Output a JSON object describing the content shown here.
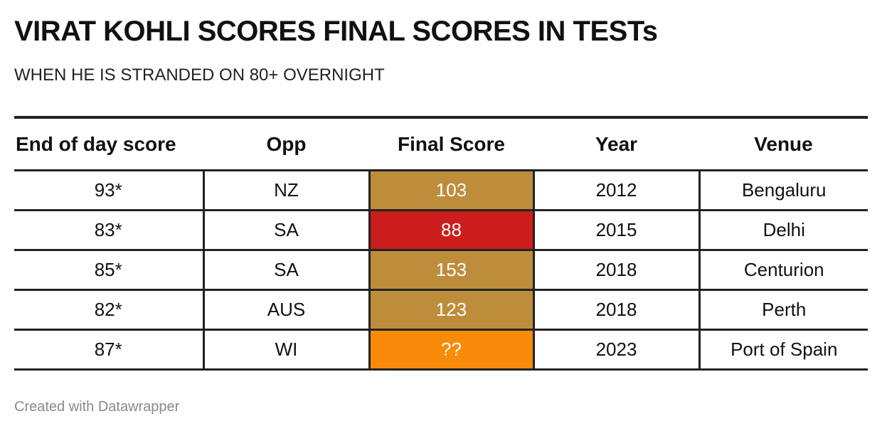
{
  "title": "VIRAT KOHLI SCORES FINAL SCORES IN TESTs",
  "subtitle": "WHEN HE IS STRANDED ON 80+ OVERNIGHT",
  "footer": "Created with Datawrapper",
  "colors": {
    "century": "#be8d3c",
    "below_century": "#cb1d1b",
    "unknown": "#f88c0a",
    "rule": "#222222"
  },
  "chart_data": {
    "type": "table",
    "columns": [
      "End of day score",
      "Opp",
      "Final Score",
      "Year",
      "Venue"
    ],
    "rows": [
      {
        "end_of_day": "93*",
        "opp": "NZ",
        "final": "103",
        "year": "2012",
        "venue": "Bengaluru",
        "fill": "#be8d3c"
      },
      {
        "end_of_day": "83*",
        "opp": "SA",
        "final": "88",
        "year": "2015",
        "venue": "Delhi",
        "fill": "#cb1d1b"
      },
      {
        "end_of_day": "85*",
        "opp": "SA",
        "final": "153",
        "year": "2018",
        "venue": "Centurion",
        "fill": "#be8d3c"
      },
      {
        "end_of_day": "82*",
        "opp": "AUS",
        "final": "123",
        "year": "2018",
        "venue": "Perth",
        "fill": "#be8d3c"
      },
      {
        "end_of_day": "87*",
        "opp": "WI",
        "final": "??",
        "year": "2023",
        "venue": "Port of Spain",
        "fill": "#f88c0a"
      }
    ]
  }
}
